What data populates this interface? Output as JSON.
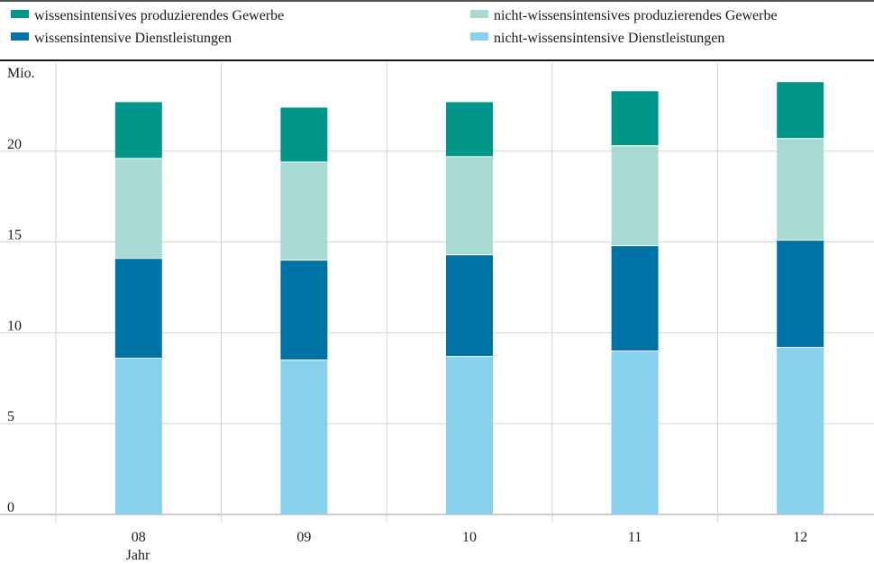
{
  "chart_data": {
    "type": "bar",
    "stacked": true,
    "categories": [
      "08",
      "09",
      "10",
      "11",
      "12"
    ],
    "xlabel": "Jahr",
    "ylabel": "Mio.",
    "ylim": [
      0,
      25
    ],
    "yticks": [
      0,
      5,
      10,
      15,
      20
    ],
    "grid": true,
    "legend_position": "top",
    "series": [
      {
        "name": "nicht-wissensintensive Dienstleistungen",
        "color": "#87d1ee",
        "values": [
          8.6,
          8.5,
          8.7,
          9.0,
          9.2
        ]
      },
      {
        "name": "wissensintensive Dienstleistungen",
        "color": "#0073a6",
        "values": [
          5.5,
          5.5,
          5.6,
          5.8,
          5.9
        ]
      },
      {
        "name": "nicht-wissensintensives produzierendes Gewerbe",
        "color": "#a8d9d2",
        "values": [
          5.5,
          5.4,
          5.4,
          5.5,
          5.6
        ]
      },
      {
        "name": "wissensintensives produzierendes Gewerbe",
        "color": "#00968a",
        "values": [
          3.1,
          3.0,
          3.0,
          3.0,
          3.1
        ]
      }
    ],
    "legend_order": [
      3,
      1,
      2,
      0
    ]
  }
}
